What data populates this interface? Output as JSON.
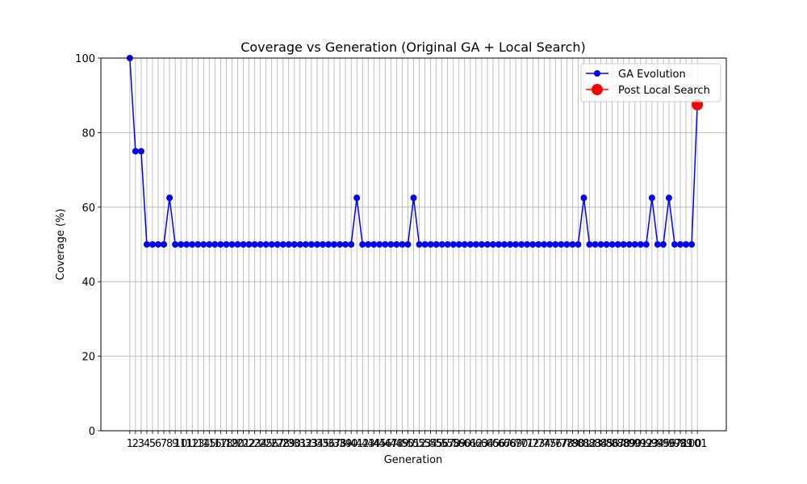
{
  "chart_data": {
    "type": "line",
    "title": "Coverage vs Generation (Original GA + Local Search)",
    "xlabel": "Generation",
    "ylabel": "Coverage (%)",
    "xlim": [
      -4.1,
      106.1
    ],
    "ylim": [
      0,
      100
    ],
    "y_ticks": [
      0,
      20,
      40,
      60,
      80,
      100
    ],
    "x_ticks_from": 1,
    "x_ticks_to": 101,
    "grid": true,
    "legend_position": "top-right",
    "series": [
      {
        "name": "GA Evolution",
        "color": "#0000ff",
        "marker": "circle",
        "x": [
          1,
          2,
          3,
          4,
          5,
          6,
          7,
          8,
          9,
          10,
          11,
          12,
          13,
          14,
          15,
          16,
          17,
          18,
          19,
          20,
          21,
          22,
          23,
          24,
          25,
          26,
          27,
          28,
          29,
          30,
          31,
          32,
          33,
          34,
          35,
          36,
          37,
          38,
          39,
          40,
          41,
          42,
          43,
          44,
          45,
          46,
          47,
          48,
          49,
          50,
          51,
          52,
          53,
          54,
          55,
          56,
          57,
          58,
          59,
          60,
          61,
          62,
          63,
          64,
          65,
          66,
          67,
          68,
          69,
          70,
          71,
          72,
          73,
          74,
          75,
          76,
          77,
          78,
          79,
          80,
          81,
          82,
          83,
          84,
          85,
          86,
          87,
          88,
          89,
          90,
          91,
          92,
          93,
          94,
          95,
          96,
          97,
          98,
          99,
          100,
          101
        ],
        "values": [
          100,
          75,
          75,
          50,
          50,
          50,
          50,
          62.5,
          50,
          50,
          50,
          50,
          50,
          50,
          50,
          50,
          50,
          50,
          50,
          50,
          50,
          50,
          50,
          50,
          50,
          50,
          50,
          50,
          50,
          50,
          50,
          50,
          50,
          50,
          50,
          50,
          50,
          50,
          50,
          50,
          62.5,
          50,
          50,
          50,
          50,
          50,
          50,
          50,
          50,
          50,
          62.5,
          50,
          50,
          50,
          50,
          50,
          50,
          50,
          50,
          50,
          50,
          50,
          50,
          50,
          50,
          50,
          50,
          50,
          50,
          50,
          50,
          50,
          50,
          50,
          50,
          50,
          50,
          50,
          50,
          50,
          62.5,
          50,
          50,
          50,
          50,
          50,
          50,
          50,
          50,
          50,
          50,
          50,
          62.5,
          50,
          50,
          62.5,
          50,
          50,
          50,
          50,
          87.5
        ]
      },
      {
        "name": "Post Local Search",
        "color": "#ff0000",
        "marker": "circle",
        "x": [
          101
        ],
        "values": [
          87.5
        ]
      }
    ]
  }
}
